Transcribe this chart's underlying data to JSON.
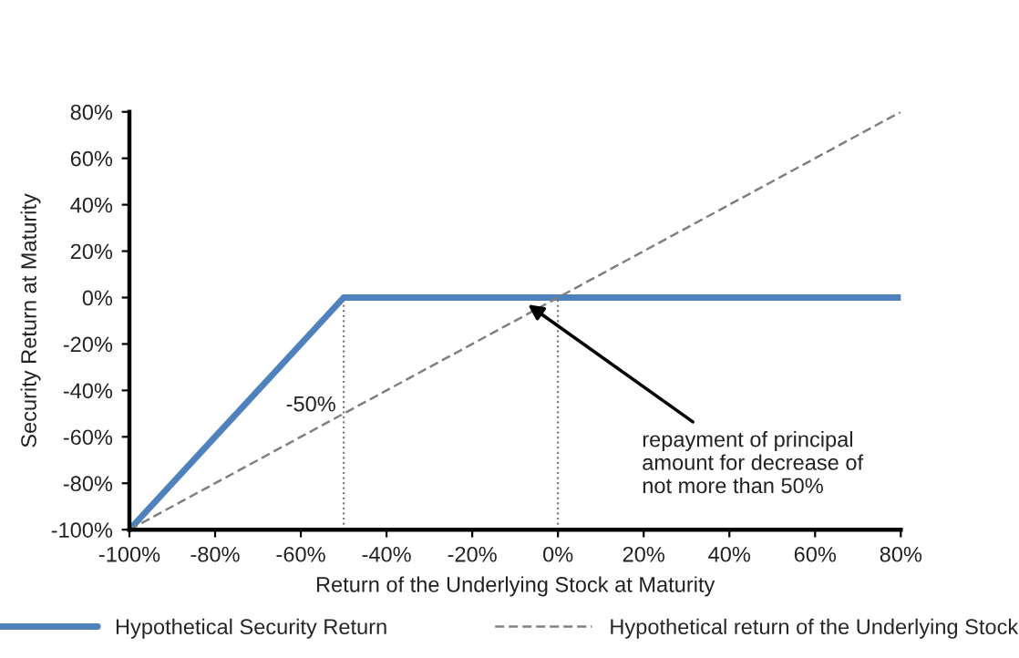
{
  "chart_data": {
    "type": "line",
    "xlabel": "Return of the Underlying Stock at Maturity",
    "ylabel": "Security Return at Maturity",
    "series": [
      {
        "name": "Hypothetical Security Return",
        "color": "#4f81bd",
        "x": [
          -100,
          -50,
          80
        ],
        "values": [
          -100,
          0,
          0
        ],
        "line_style": "solid"
      },
      {
        "name": "Hypothetical return of the Underlying Stock",
        "color": "#808080",
        "x": [
          -100,
          80
        ],
        "values": [
          -100,
          80
        ],
        "line_style": "dashed"
      }
    ],
    "xlim": [
      -100,
      80
    ],
    "ylim": [
      -100,
      80
    ],
    "xticks": [
      {
        "value": -100,
        "label": "-100%"
      },
      {
        "value": -80,
        "label": "-80%"
      },
      {
        "value": -60,
        "label": "-60%"
      },
      {
        "value": -40,
        "label": "-40%"
      },
      {
        "value": -20,
        "label": "-20%"
      },
      {
        "value": 0,
        "label": "0%"
      },
      {
        "value": 20,
        "label": "20%"
      },
      {
        "value": 40,
        "label": "40%"
      },
      {
        "value": 60,
        "label": "60%"
      },
      {
        "value": 80,
        "label": "80%"
      }
    ],
    "yticks": [
      {
        "value": -100,
        "label": "-100%"
      },
      {
        "value": -80,
        "label": "-80%"
      },
      {
        "value": -60,
        "label": "-60%"
      },
      {
        "value": -40,
        "label": "-40%"
      },
      {
        "value": -20,
        "label": "-20%"
      },
      {
        "value": 0,
        "label": "0%"
      },
      {
        "value": 20,
        "label": "20%"
      },
      {
        "value": 40,
        "label": "40%"
      },
      {
        "value": 60,
        "label": "60%"
      },
      {
        "value": 80,
        "label": "80%"
      }
    ],
    "ref_lines": [
      {
        "axis": "x",
        "value": -50,
        "label": "-50%",
        "line_style": "dotted",
        "color": "#808080"
      },
      {
        "axis": "x",
        "value": 0,
        "label": null,
        "line_style": "dotted",
        "color": "#808080"
      }
    ],
    "annotations": [
      {
        "text": "repayment of principal\namount for decrease of\nnot more than 50%",
        "x": -7,
        "y": -3
      }
    ],
    "grid": false,
    "legend": "bottom",
    "marker": "none"
  }
}
